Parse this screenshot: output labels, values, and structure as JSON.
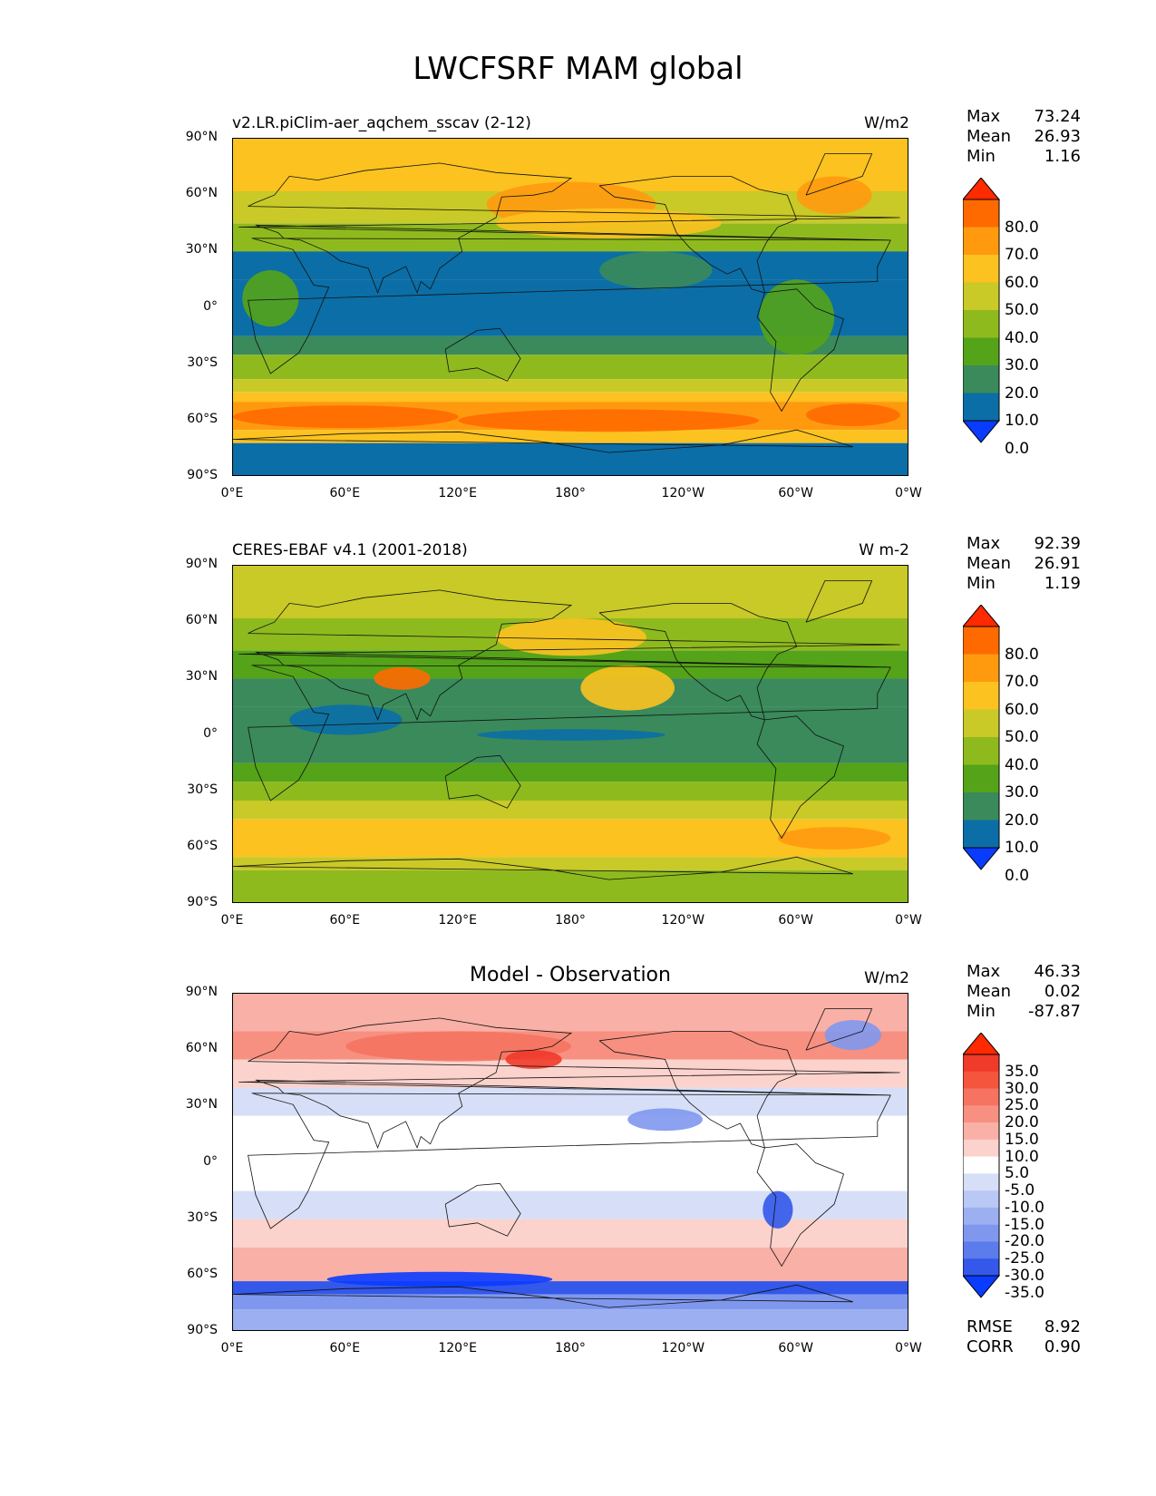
{
  "figure_title": "LWCFSRF MAM global",
  "chart_data": [
    {
      "type": "heatmap",
      "title": "v2.LR.piClim-aer_aqchem_sscav (2-12)",
      "units": "W/m2",
      "stats": {
        "max": "73.24",
        "mean": "26.93",
        "min": "1.16"
      },
      "colorbar_labels": [
        "80.0",
        "70.0",
        "60.0",
        "50.0",
        "40.0",
        "30.0",
        "20.0",
        "10.0",
        "0.0"
      ],
      "colorbar_colors": [
        "#ff2a00",
        "#ff6a00",
        "#ff9a0f",
        "#fcc21f",
        "#c9c927",
        "#8fba1e",
        "#54a318",
        "#3a8a5b",
        "#0b6ea6",
        "#0a3cff"
      ]
    },
    {
      "type": "heatmap",
      "title": "CERES-EBAF v4.1 (2001-2018)",
      "units": "W m-2",
      "stats": {
        "max": "92.39",
        "mean": "26.91",
        "min": "1.19"
      },
      "colorbar_labels": [
        "80.0",
        "70.0",
        "60.0",
        "50.0",
        "40.0",
        "30.0",
        "20.0",
        "10.0",
        "0.0"
      ],
      "colorbar_colors": [
        "#ff2a00",
        "#ff6a00",
        "#ff9a0f",
        "#fcc21f",
        "#c9c927",
        "#8fba1e",
        "#54a318",
        "#3a8a5b",
        "#0b6ea6",
        "#0a3cff"
      ]
    },
    {
      "type": "heatmap",
      "title": "Model - Observation",
      "units": "W/m2",
      "stats": {
        "max": "46.33",
        "mean": "0.02",
        "min": "-87.87"
      },
      "extra_stats": {
        "rmse_label": "RMSE",
        "rmse": "8.92",
        "corr_label": "CORR",
        "corr": "0.90"
      },
      "colorbar_labels": [
        "35.0",
        "30.0",
        "25.0",
        "20.0",
        "15.0",
        "10.0",
        "5.0",
        "-5.0",
        "-10.0",
        "-15.0",
        "-20.0",
        "-25.0",
        "-30.0",
        "-35.0"
      ],
      "colorbar_colors": [
        "#ff2a00",
        "#f03a2a",
        "#f4553c",
        "#f57360",
        "#f79080",
        "#f9b0a6",
        "#fbd2cc",
        "#ffffff",
        "#d6dff7",
        "#b9c8f4",
        "#9cb0f1",
        "#7f98ee",
        "#5c7bec",
        "#3358ea",
        "#0a3cff"
      ]
    }
  ],
  "axes": {
    "y_ticks": [
      "90°N",
      "60°N",
      "30°N",
      "0°",
      "30°S",
      "60°S",
      "90°S"
    ],
    "x_ticks": [
      "0°E",
      "60°E",
      "120°E",
      "180°",
      "120°W",
      "60°W",
      "0°W"
    ]
  },
  "stat_labels": {
    "max": "Max",
    "mean": "Mean",
    "min": "Min"
  }
}
